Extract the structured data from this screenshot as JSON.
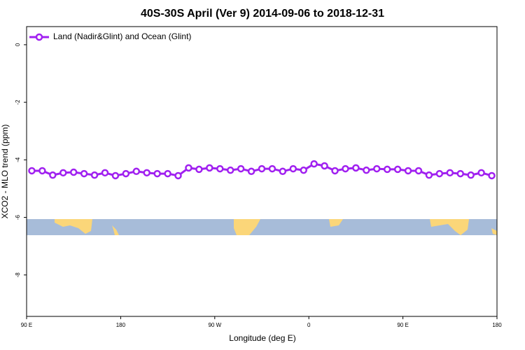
{
  "chart_data": {
    "type": "line",
    "title": "40S-30S April (Ver 9)   2014-09-06 to 2018-12-31",
    "xlabel": "Longitude (deg E)",
    "ylabel": "XCO2 - MLO trend (ppm)",
    "x": [
      95,
      105,
      115,
      125,
      135,
      145,
      155,
      165,
      175,
      185,
      195,
      205,
      215,
      225,
      235,
      245,
      255,
      265,
      275,
      285,
      295,
      305,
      315,
      325,
      335,
      345,
      355,
      365,
      375,
      385,
      395,
      405,
      415,
      425,
      435,
      445,
      455,
      465,
      475,
      485,
      495,
      505,
      515,
      525,
      535
    ],
    "series": [
      {
        "name": "Land (Nadir&Glint) and Ocean (Glint)",
        "color": "#a020f0",
        "values": [
          -4.38,
          -4.38,
          -4.53,
          -4.45,
          -4.43,
          -4.48,
          -4.53,
          -4.45,
          -4.55,
          -4.48,
          -4.4,
          -4.45,
          -4.48,
          -4.48,
          -4.55,
          -4.28,
          -4.33,
          -4.28,
          -4.31,
          -4.36,
          -4.31,
          -4.4,
          -4.31,
          -4.31,
          -4.4,
          -4.31,
          -4.36,
          -4.14,
          -4.21,
          -4.38,
          -4.31,
          -4.28,
          -4.36,
          -4.31,
          -4.33,
          -4.33,
          -4.38,
          -4.38,
          -4.53,
          -4.48,
          -4.45,
          -4.48,
          -4.53,
          -4.45,
          -4.55
        ]
      }
    ],
    "xlim": [
      90,
      540
    ],
    "xticks": [
      {
        "value": 90,
        "label": "90 E"
      },
      {
        "value": 180,
        "label": "180"
      },
      {
        "value": 270,
        "label": "90 W"
      },
      {
        "value": 360,
        "label": "0"
      },
      {
        "value": 450,
        "label": "90 E"
      },
      {
        "value": 540,
        "label": "180"
      }
    ],
    "ylim": [
      -9.44,
      0.63
    ],
    "yticks": [
      0,
      -2,
      -4,
      -6,
      -8
    ],
    "legend": "top-left"
  }
}
